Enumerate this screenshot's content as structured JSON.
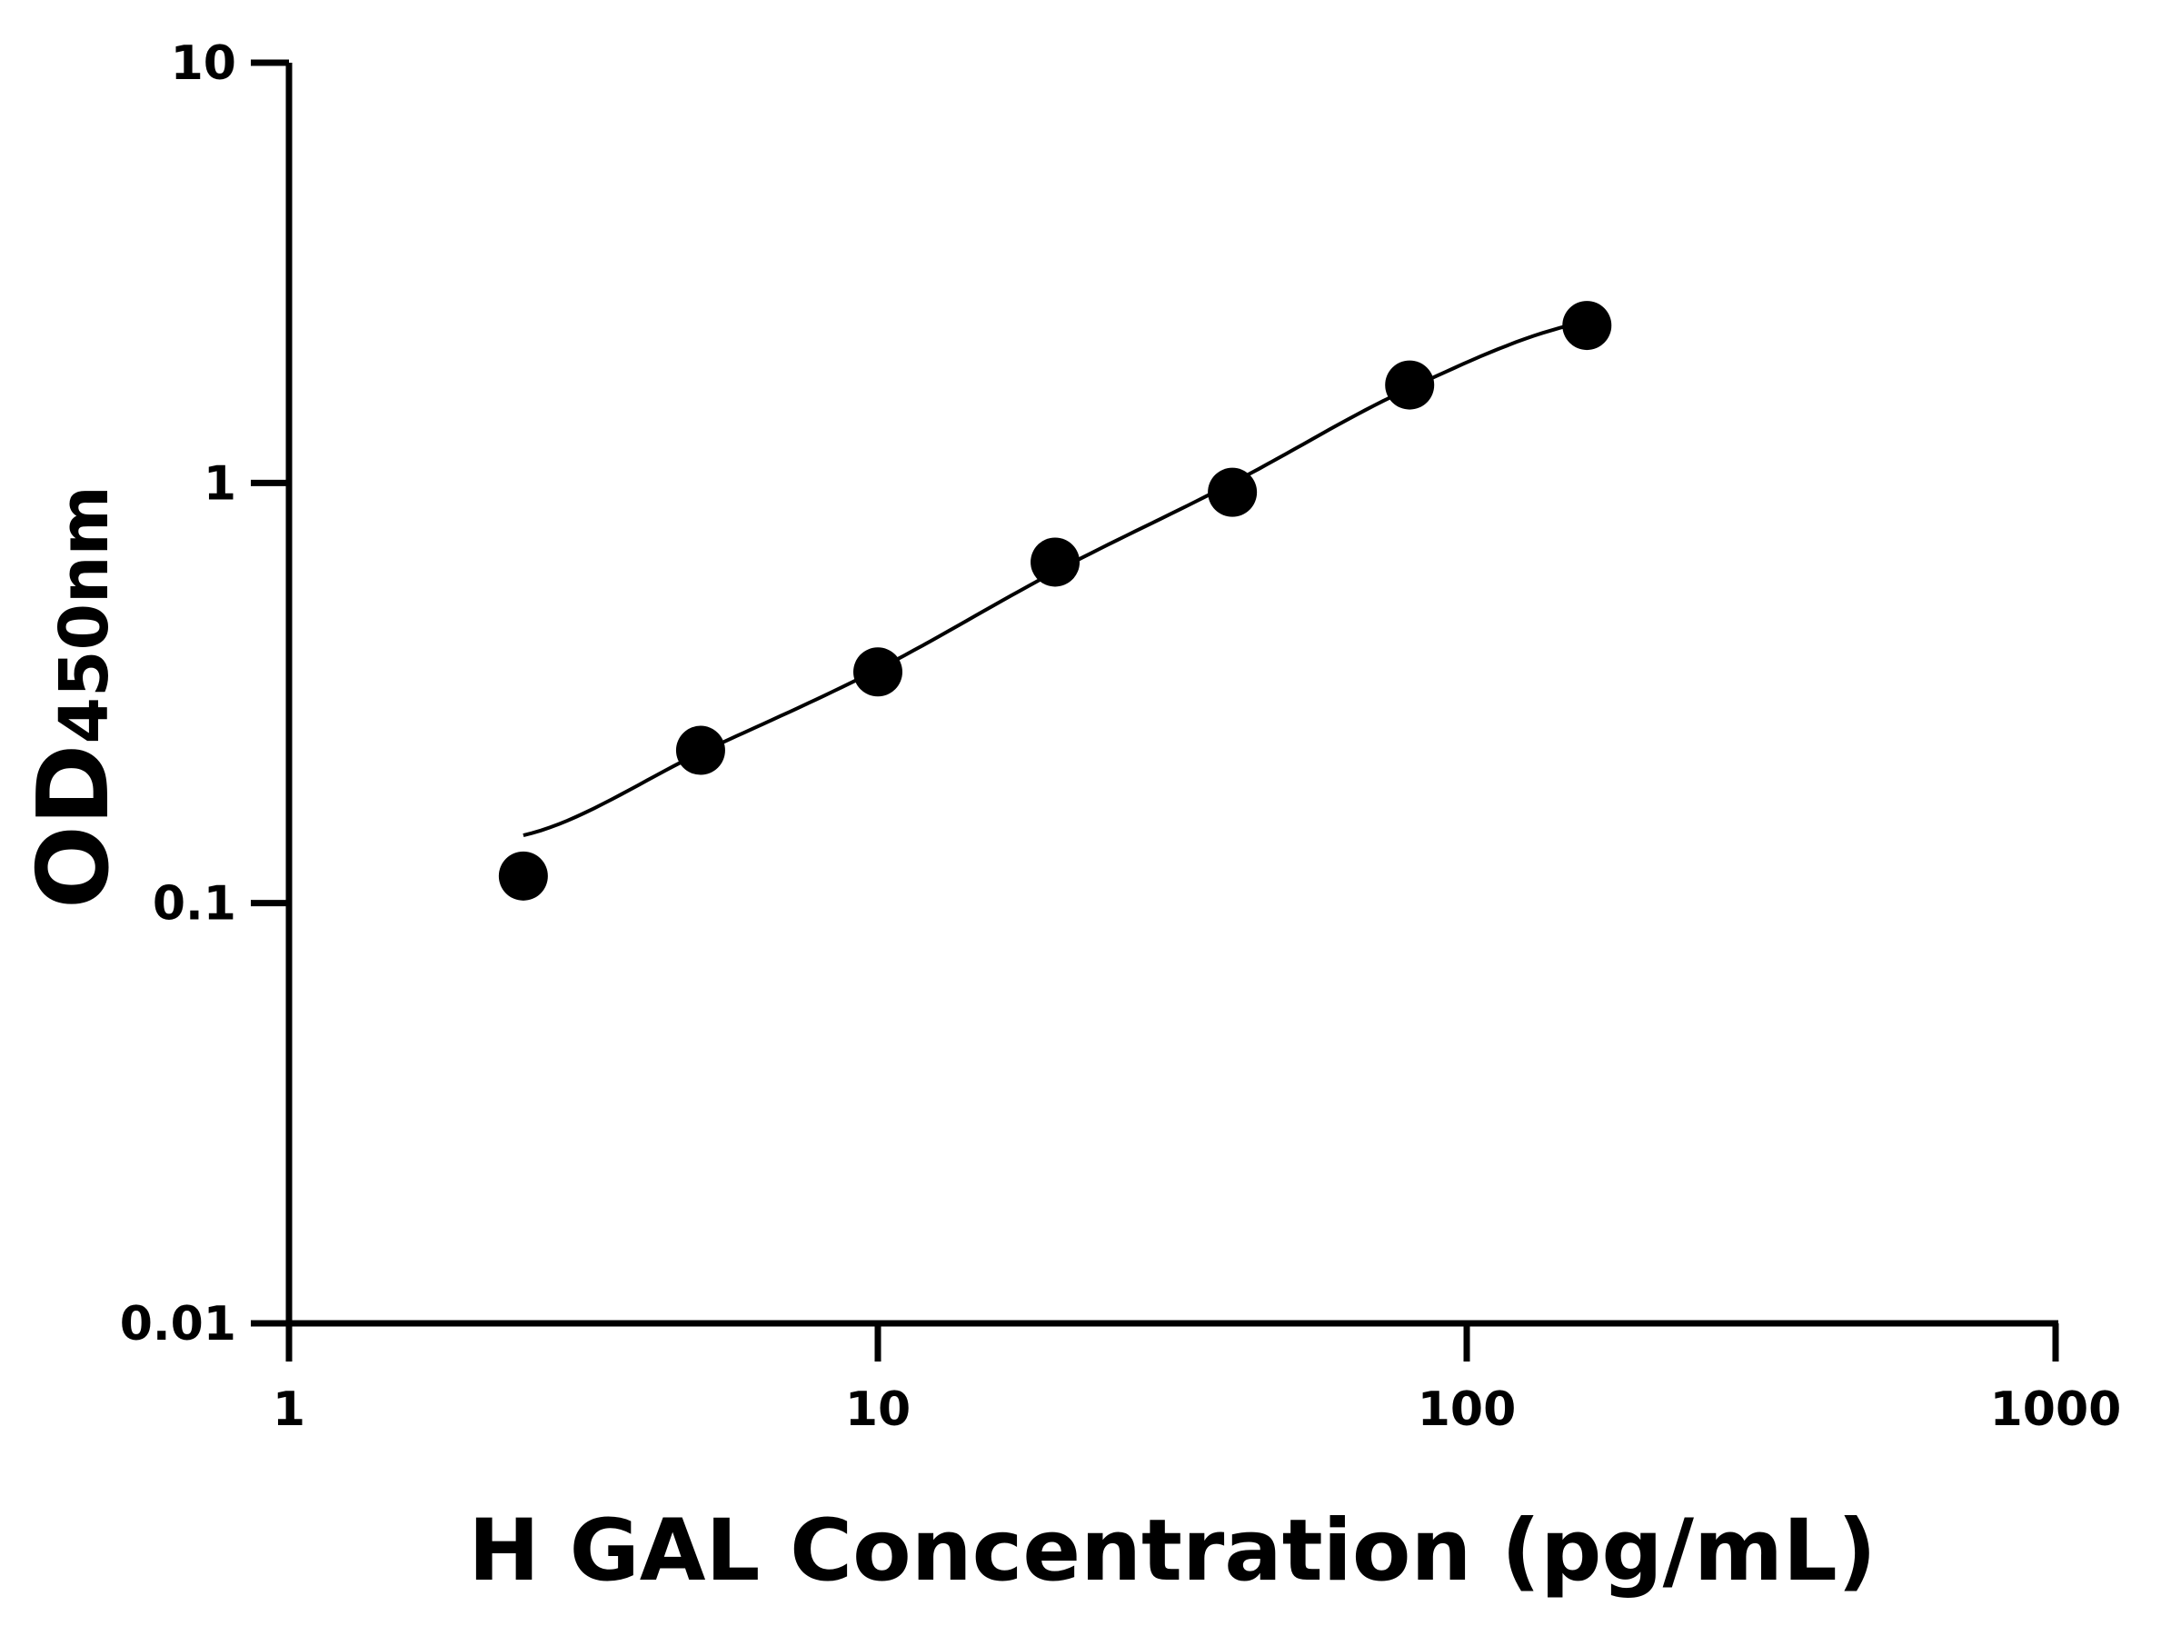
{
  "chart_data": {
    "type": "scatter",
    "xlabel": "H GAL Concentration (pg/mL)",
    "ylabel_main": "OD",
    "ylabel_sub": "450nm",
    "x_scale": "log",
    "y_scale": "log",
    "xlim": [
      1,
      1000
    ],
    "ylim": [
      0.01,
      10
    ],
    "x_ticks": [
      1,
      10,
      100,
      1000
    ],
    "x_tick_labels": [
      "1",
      "10",
      "100",
      "1000"
    ],
    "y_ticks": [
      0.01,
      0.1,
      1,
      10
    ],
    "y_tick_labels": [
      "0.01",
      "0.1",
      "1",
      "10"
    ],
    "grid": false,
    "points": {
      "x": [
        2.5,
        5,
        10,
        20,
        40,
        80,
        160
      ],
      "y": [
        0.116,
        0.231,
        0.355,
        0.648,
        0.95,
        1.71,
        2.37
      ]
    },
    "fit_curve": {
      "x": [
        2.5,
        5,
        10,
        20,
        40,
        80,
        160
      ],
      "y": [
        0.145,
        0.228,
        0.36,
        0.615,
        1.0,
        1.68,
        2.42
      ]
    },
    "colors": {
      "points": "#000000",
      "line": "#000000",
      "axes": "#000000"
    }
  }
}
